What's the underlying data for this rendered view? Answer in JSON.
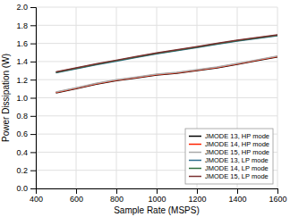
{
  "chart_data": {
    "type": "line",
    "xlabel": "Sample Rate (MSPS)",
    "ylabel": "Power Dissipation (W)",
    "x": [
      500,
      600,
      700,
      800,
      900,
      1000,
      1100,
      1200,
      1300,
      1400,
      1500,
      1600
    ],
    "series": [
      {
        "name": "JMODE 13, HP mode",
        "color": "#000000",
        "values": [
          1.055,
          1.1,
          1.15,
          1.19,
          1.22,
          1.25,
          1.27,
          1.3,
          1.33,
          1.37,
          1.41,
          1.45
        ]
      },
      {
        "name": "JMODE 14, HP mode",
        "color": "#ff2200",
        "values": [
          1.06,
          1.105,
          1.155,
          1.195,
          1.225,
          1.255,
          1.275,
          1.305,
          1.335,
          1.375,
          1.415,
          1.455
        ]
      },
      {
        "name": "JMODE 15, HP mode",
        "color": "#aaaaaa",
        "values": [
          1.065,
          1.11,
          1.16,
          1.2,
          1.23,
          1.26,
          1.28,
          1.31,
          1.34,
          1.38,
          1.42,
          1.46
        ]
      },
      {
        "name": "JMODE 13, LP mode",
        "color": "#2e6e8e",
        "values": [
          1.275,
          1.32,
          1.365,
          1.405,
          1.445,
          1.485,
          1.52,
          1.555,
          1.59,
          1.625,
          1.655,
          1.685
        ]
      },
      {
        "name": "JMODE 14, LP mode",
        "color": "#2e6e3e",
        "values": [
          1.28,
          1.325,
          1.37,
          1.41,
          1.45,
          1.49,
          1.525,
          1.56,
          1.595,
          1.63,
          1.66,
          1.69
        ]
      },
      {
        "name": "JMODE 15, LP mode",
        "color": "#7a3030",
        "values": [
          1.285,
          1.33,
          1.375,
          1.415,
          1.455,
          1.495,
          1.53,
          1.565,
          1.6,
          1.635,
          1.665,
          1.695
        ]
      }
    ],
    "xlim": [
      400,
      1600
    ],
    "ylim": [
      0,
      2
    ],
    "xticks": [
      400,
      600,
      800,
      1000,
      1200,
      1400,
      1600
    ],
    "yticks": [
      {
        "value": 0,
        "label": "0.0"
      },
      0.2,
      0.4,
      0.6,
      0.8,
      {
        "value": 1.0,
        "label": "1.0"
      },
      1.2,
      1.4,
      1.6,
      1.8,
      {
        "value": 2.0,
        "label": "2.0"
      }
    ],
    "grid": true,
    "legend": "lower right"
  }
}
